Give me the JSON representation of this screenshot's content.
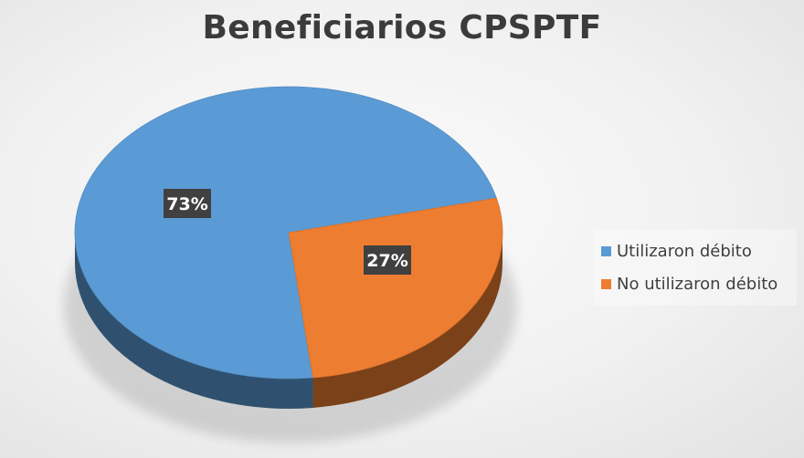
{
  "chart_data": {
    "type": "pie",
    "title": "Beneficiarios CPSPTF",
    "slices": [
      {
        "label": "Utilizaron débito",
        "value": 73,
        "data_label": "73%",
        "color": "#5b9bd5"
      },
      {
        "label": "No utilizaron débito",
        "value": 27,
        "data_label": "27%",
        "color": "#ed7d31"
      }
    ],
    "legend_position": "right",
    "style": "3d"
  }
}
